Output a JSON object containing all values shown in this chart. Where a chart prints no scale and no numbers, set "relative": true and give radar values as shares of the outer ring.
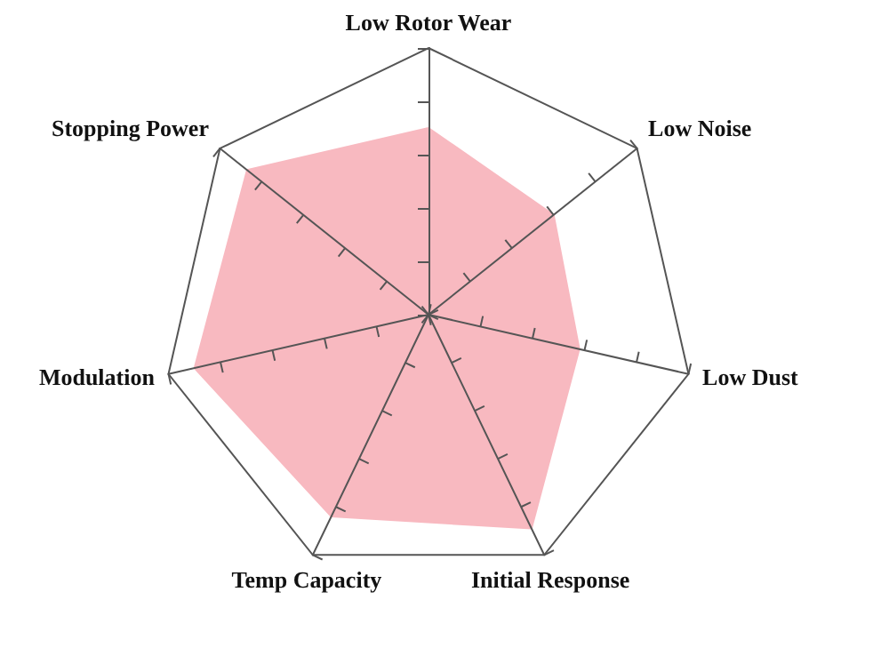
{
  "chart_data": {
    "type": "radar",
    "relative": true,
    "categories": [
      "Low Rotor Wear",
      "Low Noise",
      "Low Dust",
      "Initial Response",
      "Temp Capacity",
      "Modulation",
      "Stopping Power"
    ],
    "series": [
      {
        "color": "#f8b9c0",
        "values": [
          0.7,
          0.6,
          0.58,
          0.89,
          0.84,
          0.9,
          0.87
        ]
      }
    ]
  }
}
